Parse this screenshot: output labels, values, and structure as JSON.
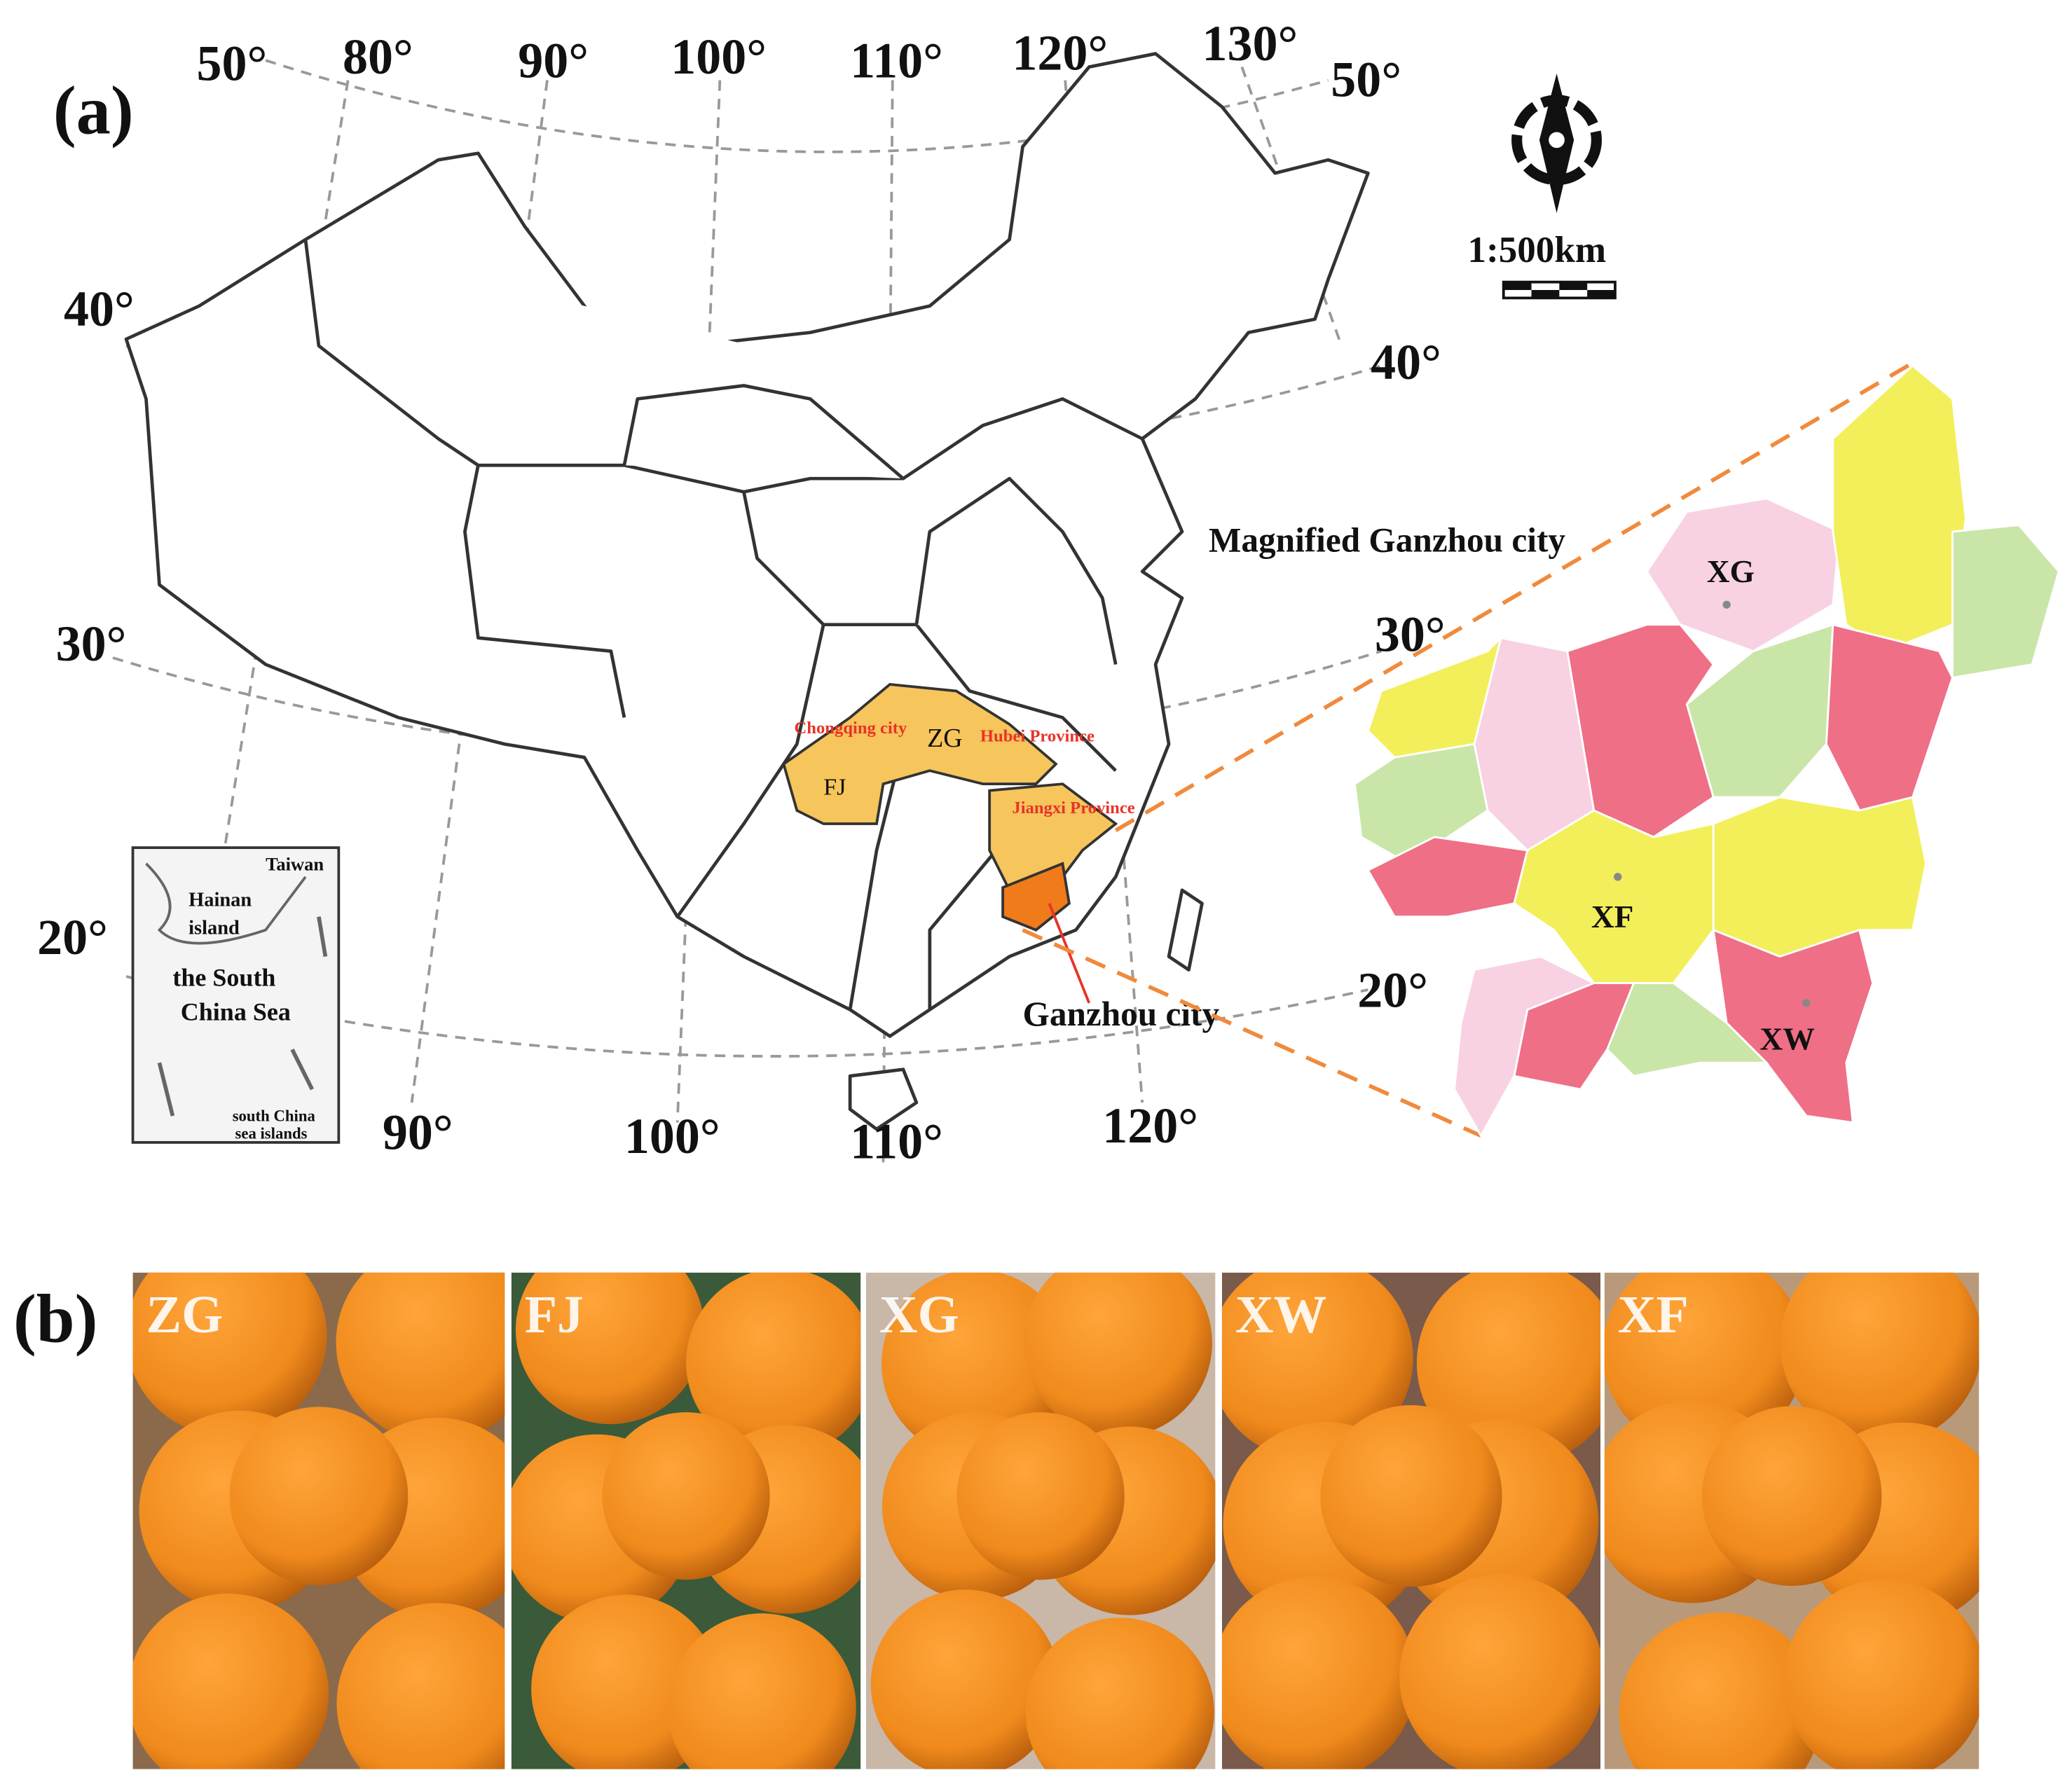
{
  "panel_a": {
    "label": "(a)",
    "graticule": {
      "top": [
        "50°",
        "80°",
        "90°",
        "100°",
        "110°",
        "120°",
        "130°",
        "50°"
      ],
      "left": [
        "40°",
        "30°",
        "20°"
      ],
      "right": [
        "40°",
        "30°",
        "20°"
      ],
      "bottom": [
        "90°",
        "100°",
        "110°",
        "120°"
      ]
    },
    "scale": "1:500km",
    "regions": [
      "Chongqing city",
      "ZG",
      "Hubei Province",
      "FJ",
      "Jiangxi Province",
      "Ganzhou city"
    ],
    "inset": [
      "Taiwan",
      "Hainan",
      "island",
      "the South",
      "China Sea",
      "south China",
      "sea islands"
    ],
    "magnified": {
      "title": "Magnified Ganzhou city",
      "sites": [
        "XG",
        "XF",
        "XW"
      ]
    }
  },
  "panel_b": {
    "label": "(b)",
    "photos": [
      "ZG",
      "FJ",
      "XG",
      "XW",
      "XF"
    ]
  }
}
